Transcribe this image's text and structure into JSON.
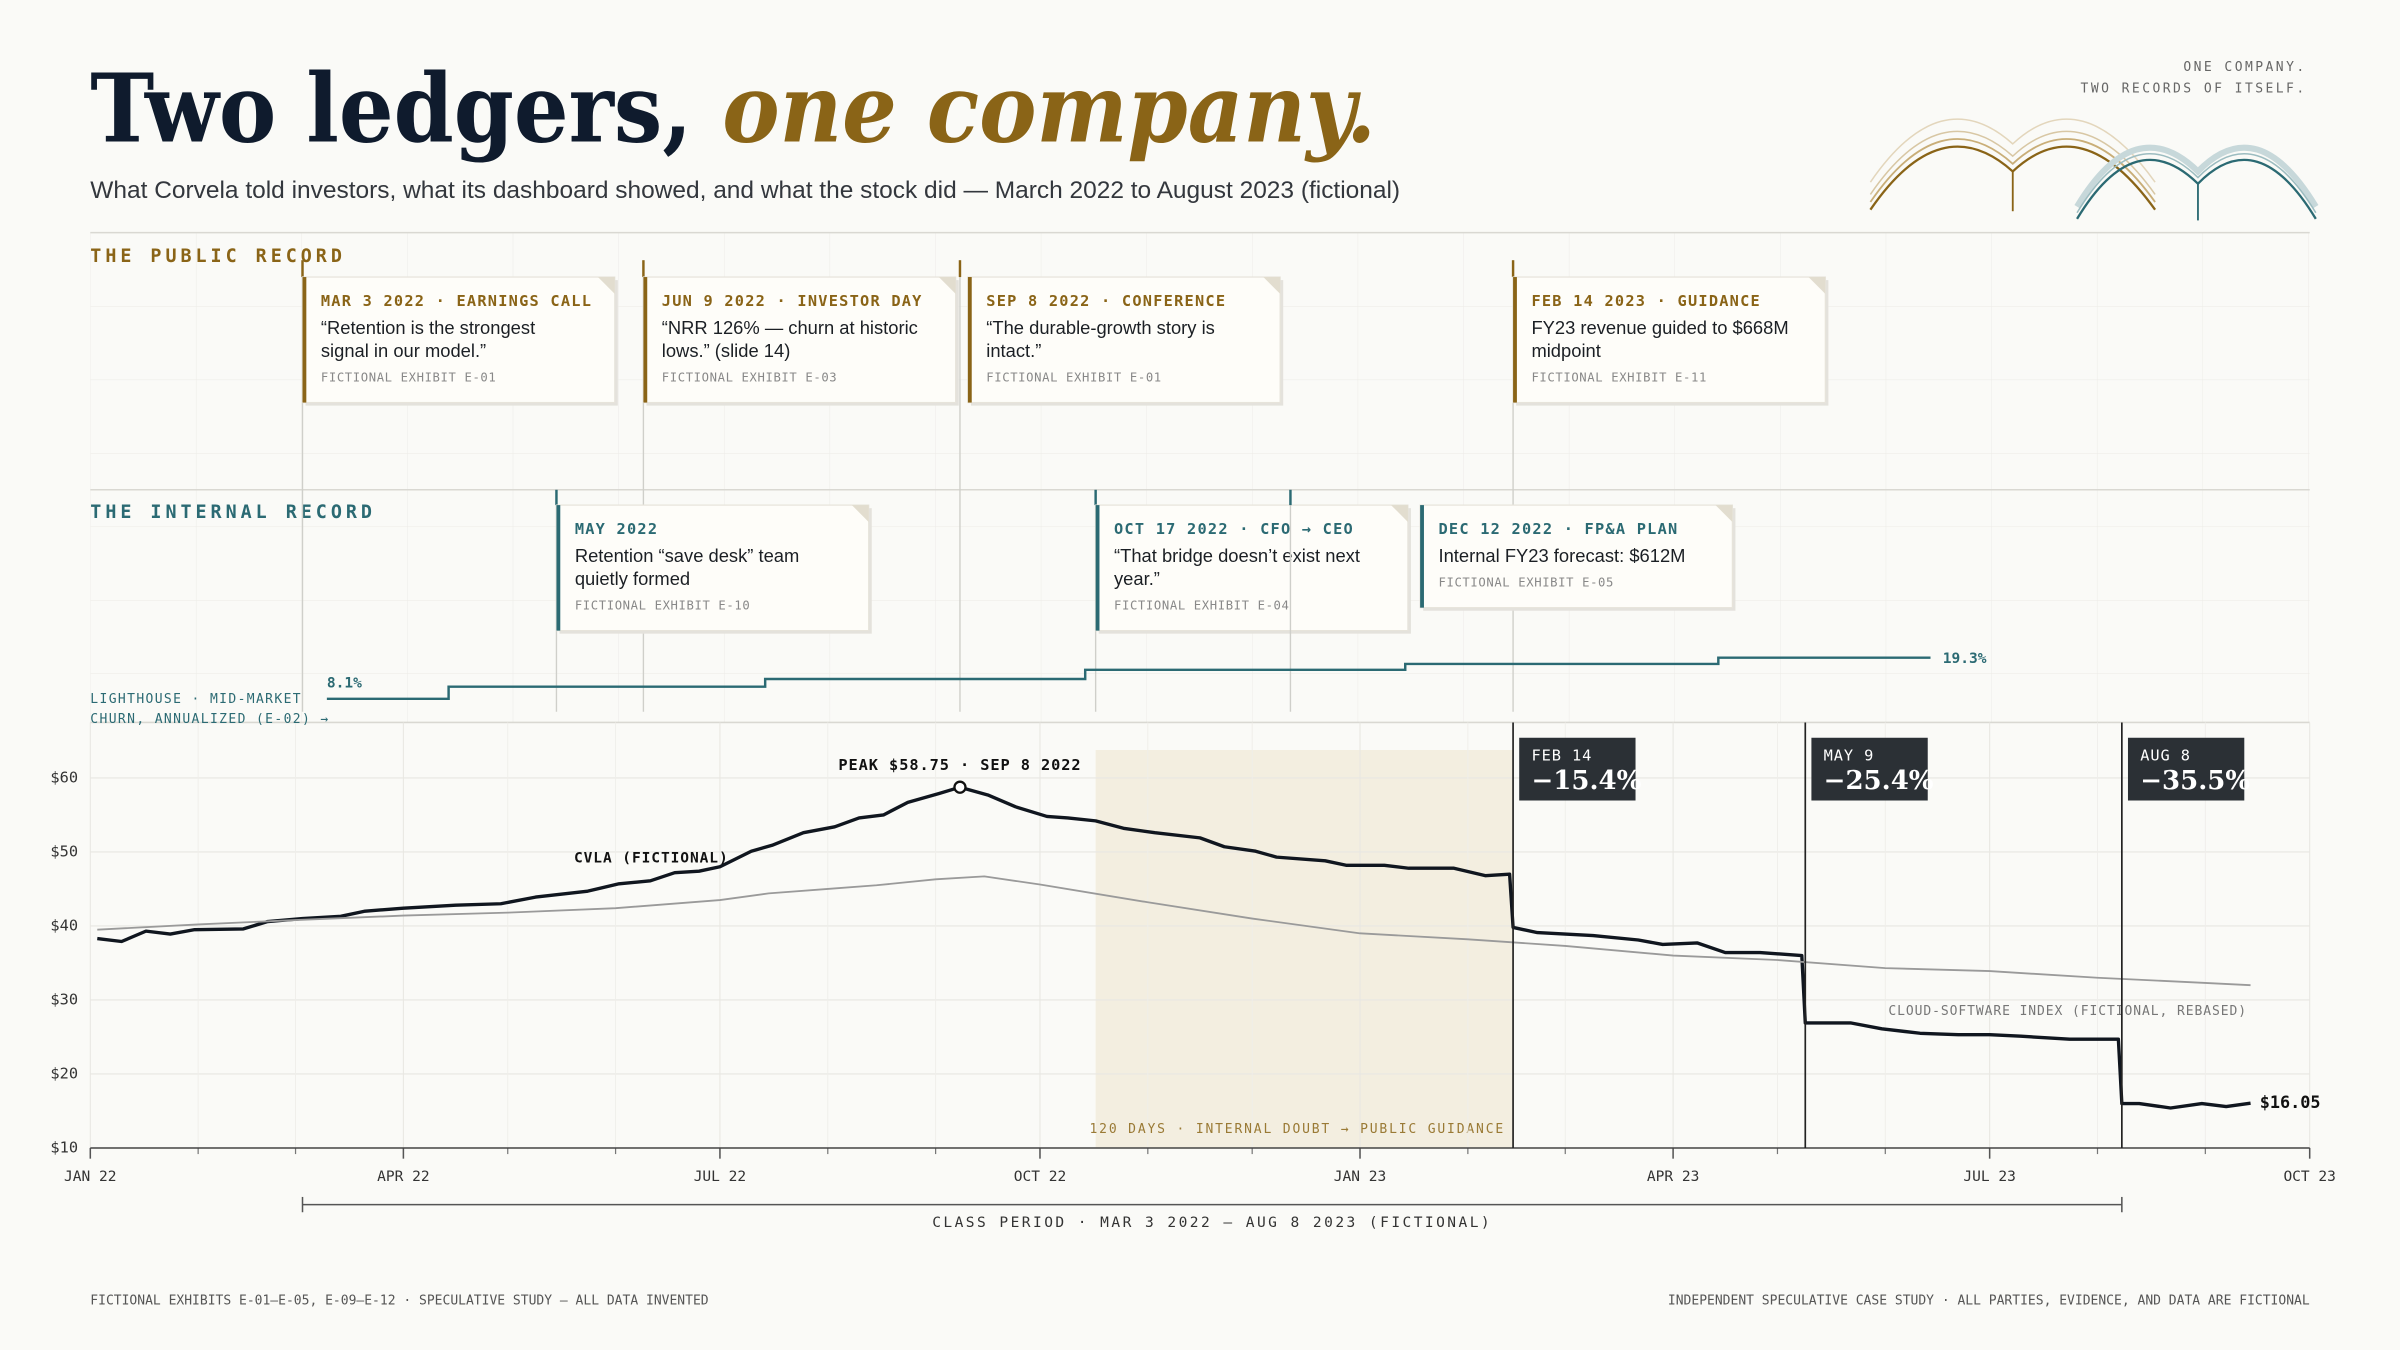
{
  "header": {
    "kicker": [
      "ONE COMPANY.",
      "TWO RECORDS OF ITSELF."
    ]
  },
  "footer": {
    "left": "FICTIONAL EXHIBITS E-01–E-05, E-09–E-12  ·  SPECULATIVE STUDY — ALL DATA INVENTED",
    "right": "INDEPENDENT SPECULATIVE CASE STUDY · ALL PARTIES, EVIDENCE, AND DATA ARE FICTIONAL"
  },
  "chart_data": [
    {
      "type": "line",
      "title": "Two ledgers,",
      "title_accent": "one company.",
      "subtitle": "What Corvela told investors, what its dashboard showed, and what the stock did — March 2022 to August 2023 (fictional)",
      "xlim": [
        "2022-01-01",
        "2023-10-01"
      ],
      "xticks": [
        {
          "value": "2022-01-01",
          "label": "JAN 22"
        },
        {
          "value": "2022-04-01",
          "label": "APR 22"
        },
        {
          "value": "2022-07-01",
          "label": "JUL 22"
        },
        {
          "value": "2022-10-01",
          "label": "OCT 22"
        },
        {
          "value": "2023-01-01",
          "label": "JAN 23"
        },
        {
          "value": "2023-04-01",
          "label": "APR 23"
        },
        {
          "value": "2023-07-01",
          "label": "JUL 23"
        },
        {
          "value": "2023-10-01",
          "label": "OCT 23"
        }
      ],
      "xminorticks": [
        "2022-02-01",
        "2022-03-01",
        "2022-05-01",
        "2022-06-01",
        "2022-08-01",
        "2022-09-01",
        "2022-11-01",
        "2022-12-01",
        "2023-02-01",
        "2023-03-01",
        "2023-05-01",
        "2023-06-01",
        "2023-08-01",
        "2023-09-01"
      ],
      "ylim": [
        10,
        67.5
      ],
      "yticks": [
        {
          "value": 10,
          "label": "$10"
        },
        {
          "value": 20,
          "label": "$20"
        },
        {
          "value": 30,
          "label": "$30"
        },
        {
          "value": 40,
          "label": "$40"
        },
        {
          "value": 50,
          "label": "$50"
        },
        {
          "value": 60,
          "label": "$60"
        }
      ],
      "grid": true,
      "series": [
        {
          "name": "CVLA (FICTIONAL)",
          "color": "#10161f",
          "x": [
            "2022-01-03",
            "2022-01-10",
            "2022-01-17",
            "2022-01-24",
            "2022-01-31",
            "2022-02-14",
            "2022-02-21",
            "2022-03-03",
            "2022-03-14",
            "2022-03-21",
            "2022-04-01",
            "2022-04-16",
            "2022-04-29",
            "2022-05-09",
            "2022-05-24",
            "2022-06-02",
            "2022-06-11",
            "2022-06-18",
            "2022-06-25",
            "2022-07-01",
            "2022-07-10",
            "2022-07-16",
            "2022-07-25",
            "2022-08-03",
            "2022-08-10",
            "2022-08-17",
            "2022-08-24",
            "2022-09-02",
            "2022-09-08",
            "2022-09-16",
            "2022-09-24",
            "2022-10-03",
            "2022-10-09",
            "2022-10-17",
            "2022-10-25",
            "2022-11-03",
            "2022-11-16",
            "2022-11-23",
            "2022-12-02",
            "2022-12-08",
            "2022-12-22",
            "2022-12-28",
            "2023-01-08",
            "2023-01-15",
            "2023-01-28",
            "2023-02-06",
            "2023-02-13",
            "2023-02-14",
            "2023-02-21",
            "2023-03-09",
            "2023-03-22",
            "2023-03-29",
            "2023-04-08",
            "2023-04-16",
            "2023-04-26",
            "2023-05-08",
            "2023-05-09",
            "2023-05-22",
            "2023-05-31",
            "2023-06-11",
            "2023-06-22",
            "2023-07-01",
            "2023-07-10",
            "2023-07-24",
            "2023-08-07",
            "2023-08-08",
            "2023-08-13",
            "2023-08-22",
            "2023-08-31",
            "2023-09-07",
            "2023-09-14"
          ],
          "values": [
            38.3,
            37.9,
            39.3,
            38.9,
            39.5,
            39.6,
            40.6,
            41.0,
            41.3,
            42.0,
            42.4,
            42.8,
            43.0,
            43.9,
            44.7,
            45.7,
            46.1,
            47.2,
            47.4,
            48.0,
            50.1,
            50.9,
            52.6,
            53.4,
            54.6,
            55.0,
            56.7,
            57.9,
            58.75,
            57.7,
            56.1,
            54.8,
            54.6,
            54.2,
            53.2,
            52.6,
            51.9,
            50.7,
            50.1,
            49.3,
            48.8,
            48.2,
            48.2,
            47.8,
            47.8,
            46.8,
            47.0,
            39.8,
            39.1,
            38.7,
            38.1,
            37.5,
            37.7,
            36.4,
            36.4,
            36.0,
            26.9,
            26.9,
            26.1,
            25.5,
            25.3,
            25.3,
            25.1,
            24.7,
            24.7,
            16.0,
            16.0,
            15.4,
            16.0,
            15.6,
            16.05
          ],
          "value_labels": [
            null,
            null,
            null,
            null,
            null,
            null,
            null,
            null,
            null,
            null,
            null,
            null,
            null,
            null,
            null,
            null,
            null,
            null,
            null,
            null,
            null,
            null,
            null,
            null,
            null,
            null,
            null,
            null,
            null,
            null,
            null,
            null,
            null,
            null,
            null,
            null,
            null,
            null,
            null,
            null,
            null,
            null,
            null,
            null,
            null,
            null,
            null,
            null,
            null,
            null,
            null,
            null,
            null,
            null,
            null,
            null,
            null,
            null,
            null,
            null,
            null,
            null,
            null,
            null,
            null,
            null,
            null,
            null,
            null,
            null,
            "$16.05"
          ]
        },
        {
          "name": "CLOUD-SOFTWARE INDEX (FICTIONAL, REBASED)",
          "color": "#9a9a9a",
          "x": [
            "2022-01-03",
            "2022-02-01",
            "2022-03-01",
            "2022-04-01",
            "2022-05-01",
            "2022-06-01",
            "2022-07-01",
            "2022-07-15",
            "2022-08-01",
            "2022-08-15",
            "2022-09-01",
            "2022-09-15",
            "2022-10-01",
            "2022-11-01",
            "2022-12-01",
            "2023-01-01",
            "2023-02-01",
            "2023-03-01",
            "2023-04-01",
            "2023-05-01",
            "2023-06-01",
            "2023-07-01",
            "2023-08-01",
            "2023-09-01",
            "2023-09-14"
          ],
          "values": [
            39.5,
            40.2,
            40.8,
            41.4,
            41.8,
            42.4,
            43.5,
            44.4,
            45.0,
            45.5,
            46.3,
            46.7,
            45.6,
            43.2,
            41.0,
            39.0,
            38.2,
            37.3,
            36.0,
            35.4,
            34.3,
            33.9,
            33.0,
            32.3,
            32.0
          ]
        }
      ],
      "peak": {
        "label": "PEAK $58.75 · SEP 8 2022",
        "x": "2022-09-08",
        "value": 58.75
      },
      "drops": [
        {
          "date": "2023-02-14",
          "label": "FEB 14",
          "value": -15.4,
          "value_label": "−15.4%"
        },
        {
          "date": "2023-05-09",
          "label": "MAY 9",
          "value": -25.4,
          "value_label": "−25.4%"
        },
        {
          "date": "2023-08-08",
          "label": "AUG 8",
          "value": -35.5,
          "value_label": "−35.5%"
        }
      ],
      "shade": {
        "from": "2022-10-17",
        "to": "2023-02-14",
        "label": "120 DAYS · INTERNAL DOUBT → PUBLIC GUIDANCE"
      },
      "class_period": {
        "from": "2022-03-03",
        "to": "2023-08-08",
        "label": "CLASS PERIOD · MAR 3 2022 – AUG 8 2023 (FICTIONAL)"
      },
      "public_record": {
        "title": "THE PUBLIC RECORD",
        "color": "#8a6417",
        "events": [
          {
            "date": "2022-03-03",
            "heading": "MAR 3 2022 · EARNINGS CALL",
            "quote": [
              "“Retention is the strongest",
              "signal in our model.”"
            ],
            "exhibit": "FICTIONAL EXHIBIT E-01"
          },
          {
            "date": "2022-06-09",
            "heading": "JUN 9 2022 · INVESTOR DAY",
            "quote": [
              "“NRR 126% — churn at historic",
              "lows.” (slide 14)"
            ],
            "exhibit": "FICTIONAL EXHIBIT E-03"
          },
          {
            "date": "2022-09-08",
            "heading": "SEP 8 2022 · CONFERENCE",
            "quote": [
              "“The durable-growth story is",
              "intact.”"
            ],
            "exhibit": "FICTIONAL EXHIBIT E-01"
          },
          {
            "date": "2023-02-14",
            "heading": "FEB 14 2023 · GUIDANCE",
            "quote": [
              "FY23 revenue guided to $668M",
              "midpoint"
            ],
            "exhibit": "FICTIONAL EXHIBIT E-11"
          }
        ]
      },
      "internal_record": {
        "title": "THE INTERNAL RECORD",
        "color": "#2b6a73",
        "events": [
          {
            "date": "2022-05",
            "heading": "MAY 2022",
            "quote": [
              "Retention “save desk” team",
              "quietly formed"
            ],
            "exhibit": "FICTIONAL EXHIBIT E-10"
          },
          {
            "date": "2022-10-17",
            "heading": "OCT 17 2022 · CFO → CEO",
            "quote": [
              "“That bridge doesn’t exist next",
              "year.”"
            ],
            "exhibit": "FICTIONAL EXHIBIT E-04"
          },
          {
            "date": "2022-12-12",
            "heading": "DEC 12 2022 · FP&A PLAN",
            "quote": [
              "Internal FY23 forecast: $612M"
            ],
            "exhibit": "FICTIONAL EXHIBIT E-05"
          }
        ]
      }
    },
    {
      "type": "step",
      "label": [
        "LIGHTHOUSE · MID-MARKET",
        "CHURN, ANNUALIZED (E-02) →"
      ],
      "color": "#2b6a73",
      "ylim": [
        5,
        25
      ],
      "x": [
        "2022-03-10",
        "2022-04-14",
        "2022-07-14",
        "2022-10-14",
        "2023-01-14",
        "2023-04-14",
        "2023-06-14"
      ],
      "values": [
        8.1,
        11.4,
        13.5,
        16.0,
        17.6,
        19.3,
        19.3
      ],
      "value_labels": [
        "8.1%",
        null,
        null,
        null,
        null,
        null,
        "19.3%"
      ]
    }
  ]
}
